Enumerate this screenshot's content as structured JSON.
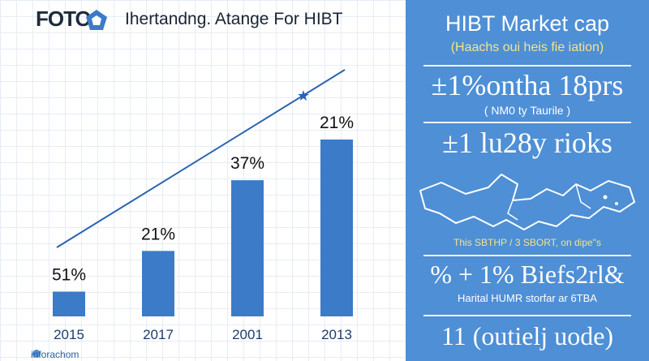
{
  "header": {
    "logo_text": "FOTO",
    "title": "Ihertandng. Atange For HIBT"
  },
  "footer": {
    "credit": "inforachom"
  },
  "chart_data": {
    "type": "bar",
    "categories": [
      "2015",
      "2017",
      "2001",
      "2013"
    ],
    "values": [
      51,
      21,
      37,
      21
    ],
    "data_labels": [
      "51%",
      "21%",
      "37%",
      "21%"
    ],
    "bar_heights_pct": [
      14,
      37,
      77,
      100
    ],
    "trend": {
      "from_index": 0,
      "to_index": 3
    },
    "title": "Ihertandng. Atange For HIBT",
    "bar_color": "#3b7bc8",
    "line_color": "#2a63b0",
    "grid": true
  },
  "panel": {
    "title": "HIBT Market cap",
    "subtitle": "(Haachs oui heis fie iation)",
    "big1": "±1%ontha 18prs",
    "note1": "( NM0 ty Taurile )",
    "big2": "±1 lu28y rioks",
    "map_caption": "This SBTHP / 3 SBORT, on dipe\"s",
    "big3": "% + 1% Biefs2rl&",
    "note2": "Harital HUMR storfar ar 6TBA",
    "big4": "11 (outielj uode)",
    "bg_color": "#4e8fd6",
    "accent_color": "#f3e48a"
  }
}
